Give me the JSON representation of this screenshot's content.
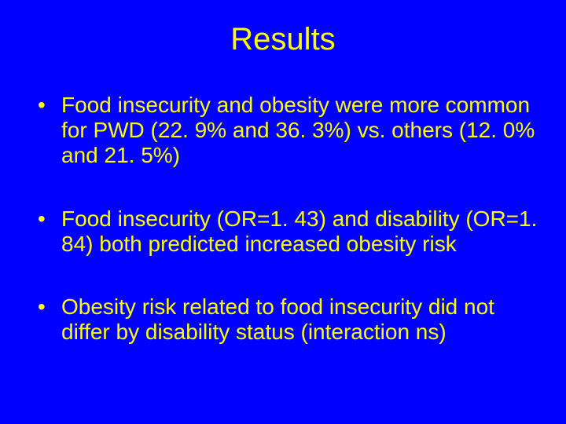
{
  "slide": {
    "background_color": "#0000ff",
    "text_color": "#ffff00",
    "title": "Results",
    "title_fontsize": 40,
    "bullet_fontsize": 28,
    "bullets": [
      "Food insecurity and obesity were more common for PWD (22. 9% and 36. 3%) vs. others (12. 0% and 21. 5%)",
      "Food insecurity (OR=1. 43) and disability (OR=1. 84) both predicted increased obesity risk",
      "Obesity risk related to food insecurity did not differ by disability status (interaction ns)"
    ]
  }
}
